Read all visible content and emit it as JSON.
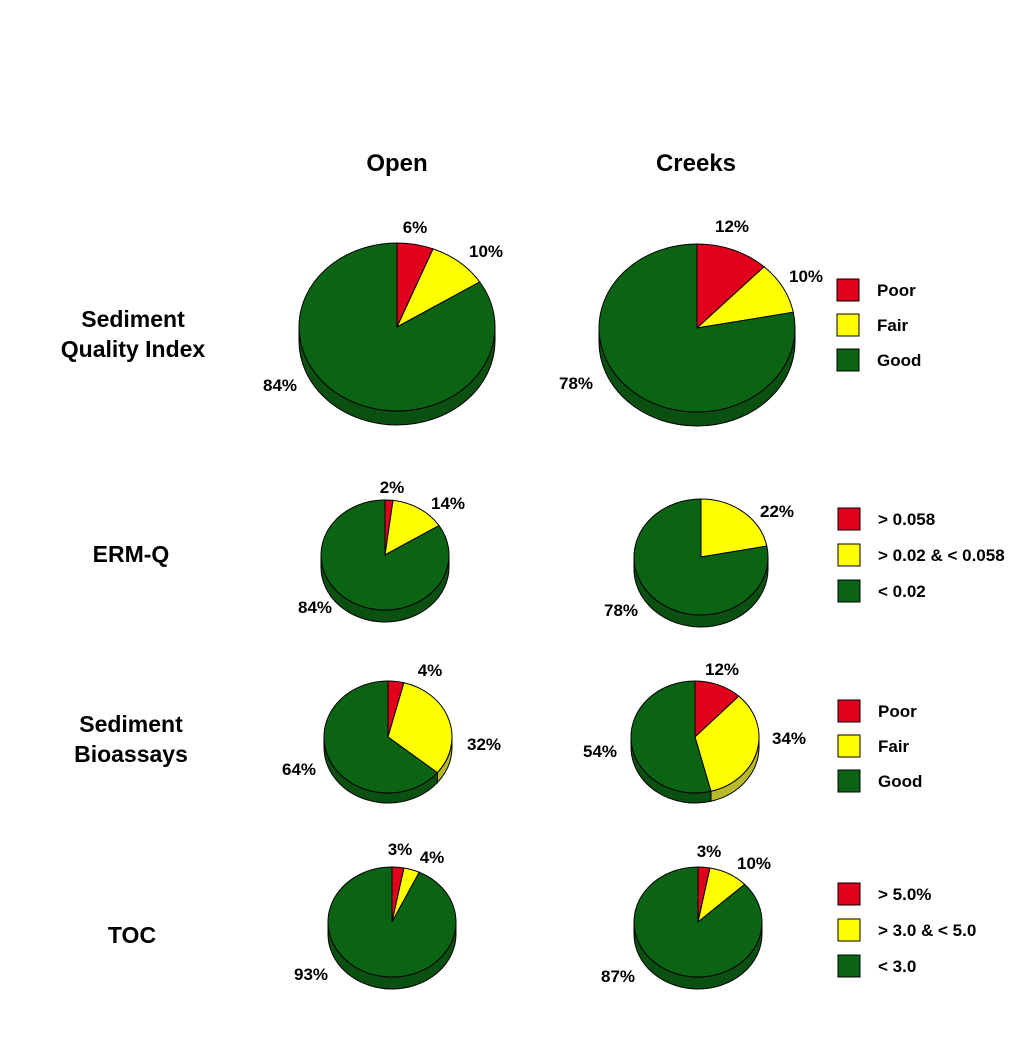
{
  "colors": {
    "red": "#e0001b",
    "yellow": "#ffff00",
    "green": "#0b6414",
    "yellow_side": "#b9b92c",
    "green_side": "#0a5010",
    "red_side": "#a00012"
  },
  "columns": [
    "Open",
    "Creeks"
  ],
  "chart_data": [
    {
      "type": "pie",
      "row_title": [
        "Sediment",
        "Quality Index"
      ],
      "legend": [
        "Poor",
        "Fair",
        "Good"
      ],
      "pies": [
        {
          "column": "Open",
          "labels": [
            "6%",
            "10%",
            "84%"
          ],
          "values": [
            6,
            10,
            84
          ]
        },
        {
          "column": "Creeks",
          "labels": [
            "12%",
            "10%",
            "78%"
          ],
          "values": [
            12,
            10,
            78
          ]
        }
      ]
    },
    {
      "type": "pie",
      "row_title": [
        "ERM-Q"
      ],
      "legend": [
        "> 0.058",
        "> 0.02 & < 0.058",
        "< 0.02"
      ],
      "pies": [
        {
          "column": "Open",
          "labels": [
            "2%",
            "14%",
            "84%"
          ],
          "values": [
            2,
            14,
            84
          ]
        },
        {
          "column": "Creeks",
          "labels": [
            "",
            "22%",
            "78%"
          ],
          "values": [
            0,
            22,
            78
          ]
        }
      ]
    },
    {
      "type": "pie",
      "row_title": [
        "Sediment",
        "Bioassays"
      ],
      "legend": [
        "Poor",
        "Fair",
        "Good"
      ],
      "pies": [
        {
          "column": "Open",
          "labels": [
            "4%",
            "32%",
            "64%"
          ],
          "values": [
            4,
            32,
            64
          ]
        },
        {
          "column": "Creeks",
          "labels": [
            "12%",
            "34%",
            "54%"
          ],
          "values": [
            12,
            34,
            54
          ]
        }
      ]
    },
    {
      "type": "pie",
      "row_title": [
        "TOC"
      ],
      "legend": [
        "> 5.0%",
        "> 3.0 & < 5.0",
        "< 3.0"
      ],
      "pies": [
        {
          "column": "Open",
          "labels": [
            "3%",
            "4%",
            "93%"
          ],
          "values": [
            3,
            4,
            93
          ]
        },
        {
          "column": "Creeks",
          "labels": [
            "3%",
            "10%",
            "87%"
          ],
          "values": [
            3,
            10,
            87
          ]
        }
      ]
    }
  ]
}
